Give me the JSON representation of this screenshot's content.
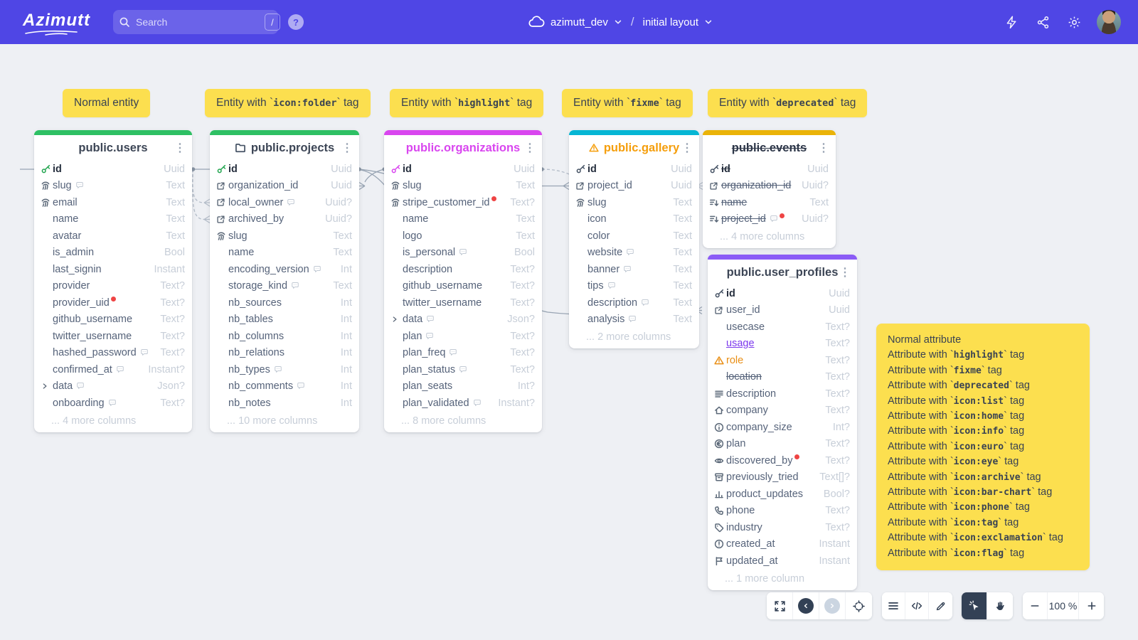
{
  "topbar": {
    "logo": "Azimutt",
    "search": {
      "placeholder": "Search",
      "shortcut": "/"
    },
    "help": "?",
    "project": "azimutt_dev",
    "breadcrumb_separator": "/",
    "layout": "initial layout"
  },
  "labels": [
    {
      "before": "Normal entity",
      "code": "",
      "after": ""
    },
    {
      "before": "Entity with `",
      "code": "icon:folder",
      "after": "` tag"
    },
    {
      "before": "Entity with `",
      "code": "highlight",
      "after": "` tag"
    },
    {
      "before": "Entity with `",
      "code": "fixme",
      "after": "` tag"
    },
    {
      "before": "Entity with `",
      "code": "deprecated",
      "after": "` tag"
    }
  ],
  "tables": [
    {
      "name": "public.users",
      "bar_color": "#2ec064",
      "title_color": "#3d4656",
      "key_color": "#22a54f",
      "title_icon": "none",
      "title_deprecated": false,
      "footer": "... 4 more columns",
      "columns": [
        {
          "name": "id",
          "type": "Uuid",
          "icon": "pk",
          "pk": true
        },
        {
          "name": "slug",
          "type": "Text",
          "icon": "unique",
          "comment": true
        },
        {
          "name": "email",
          "type": "Text",
          "icon": "unique"
        },
        {
          "name": "name",
          "type": "Text"
        },
        {
          "name": "avatar",
          "type": "Text"
        },
        {
          "name": "is_admin",
          "type": "Bool"
        },
        {
          "name": "last_signin",
          "type": "Instant"
        },
        {
          "name": "provider",
          "type": "Text?"
        },
        {
          "name": "provider_uid",
          "type": "Text?",
          "red_dot": true
        },
        {
          "name": "github_username",
          "type": "Text?"
        },
        {
          "name": "twitter_username",
          "type": "Text?"
        },
        {
          "name": "hashed_password",
          "type": "Text?",
          "comment": true
        },
        {
          "name": "confirmed_at",
          "type": "Instant?",
          "comment": true
        },
        {
          "name": "data",
          "type": "Json?",
          "icon": "chevron",
          "comment": true
        },
        {
          "name": "onboarding",
          "type": "Text?",
          "comment": true
        }
      ]
    },
    {
      "name": "public.projects",
      "bar_color": "#2ec064",
      "title_color": "#3d4656",
      "key_color": "#22a54f",
      "title_icon": "folder",
      "title_deprecated": false,
      "footer": "... 10 more columns",
      "columns": [
        {
          "name": "id",
          "type": "Uuid",
          "icon": "pk",
          "pk": true
        },
        {
          "name": "organization_id",
          "type": "Uuid",
          "icon": "fk"
        },
        {
          "name": "local_owner",
          "type": "Uuid?",
          "icon": "fk",
          "comment": true
        },
        {
          "name": "archived_by",
          "type": "Uuid?",
          "icon": "fk"
        },
        {
          "name": "slug",
          "type": "Text",
          "icon": "unique"
        },
        {
          "name": "name",
          "type": "Text"
        },
        {
          "name": "encoding_version",
          "type": "Int",
          "comment": true
        },
        {
          "name": "storage_kind",
          "type": "Text",
          "comment": true
        },
        {
          "name": "nb_sources",
          "type": "Int"
        },
        {
          "name": "nb_tables",
          "type": "Int"
        },
        {
          "name": "nb_columns",
          "type": "Int"
        },
        {
          "name": "nb_relations",
          "type": "Int"
        },
        {
          "name": "nb_types",
          "type": "Int",
          "comment": true
        },
        {
          "name": "nb_comments",
          "type": "Int",
          "comment": true
        },
        {
          "name": "nb_notes",
          "type": "Int"
        }
      ]
    },
    {
      "name": "public.organizations",
      "bar_color": "#d946ef",
      "title_color": "#d946ef",
      "key_color": "#d946ef",
      "title_icon": "none",
      "title_deprecated": false,
      "footer": "... 8 more columns",
      "columns": [
        {
          "name": "id",
          "type": "Uuid",
          "icon": "pk",
          "pk": true
        },
        {
          "name": "slug",
          "type": "Text",
          "icon": "unique"
        },
        {
          "name": "stripe_customer_id",
          "type": "Text?",
          "icon": "unique",
          "red_dot": true
        },
        {
          "name": "name",
          "type": "Text"
        },
        {
          "name": "logo",
          "type": "Text"
        },
        {
          "name": "is_personal",
          "type": "Bool",
          "comment": true
        },
        {
          "name": "description",
          "type": "Text?"
        },
        {
          "name": "github_username",
          "type": "Text?"
        },
        {
          "name": "twitter_username",
          "type": "Text?"
        },
        {
          "name": "data",
          "type": "Json?",
          "icon": "chevron",
          "comment": true
        },
        {
          "name": "plan",
          "type": "Text?",
          "comment": true
        },
        {
          "name": "plan_freq",
          "type": "Text?",
          "comment": true
        },
        {
          "name": "plan_status",
          "type": "Text?",
          "comment": true
        },
        {
          "name": "plan_seats",
          "type": "Int?"
        },
        {
          "name": "plan_validated",
          "type": "Instant?",
          "comment": true
        }
      ]
    },
    {
      "name": "public.gallery",
      "bar_color": "#06b6d4",
      "title_color": "#f59e0b",
      "key_color": "#455264",
      "title_icon": "warning",
      "title_deprecated": false,
      "footer": "... 2 more columns",
      "columns": [
        {
          "name": "id",
          "type": "Uuid",
          "icon": "pk",
          "pk": true
        },
        {
          "name": "project_id",
          "type": "Uuid",
          "icon": "fk"
        },
        {
          "name": "slug",
          "type": "Text",
          "icon": "unique"
        },
        {
          "name": "icon",
          "type": "Text"
        },
        {
          "name": "color",
          "type": "Text"
        },
        {
          "name": "website",
          "type": "Text",
          "comment": true
        },
        {
          "name": "banner",
          "type": "Text",
          "comment": true
        },
        {
          "name": "tips",
          "type": "Text",
          "comment": true
        },
        {
          "name": "description",
          "type": "Text",
          "comment": true
        },
        {
          "name": "analysis",
          "type": "Text",
          "comment": true
        }
      ]
    },
    {
      "name": "public.events",
      "bar_color": "#eab308",
      "title_color": "#2d3648",
      "key_color": "#455264",
      "title_icon": "none",
      "title_deprecated": true,
      "footer": "... 4 more columns",
      "columns": [
        {
          "name": "id",
          "type": "Uuid",
          "icon": "pk",
          "pk": true,
          "style": "deprecated"
        },
        {
          "name": "organization_id",
          "type": "Uuid?",
          "icon": "fk",
          "style": "deprecated"
        },
        {
          "name": "name",
          "type": "Text",
          "icon": "index",
          "style": "deprecated"
        },
        {
          "name": "project_id",
          "type": "Uuid?",
          "icon": "index",
          "style": "deprecated",
          "red_dot": true,
          "comment": true
        }
      ]
    },
    {
      "name": "public.user_profiles",
      "bar_color": "#8b5cf6",
      "title_color": "#3d4656",
      "key_color": "#455264",
      "title_icon": "none",
      "title_deprecated": false,
      "footer": "... 1 more column",
      "columns": [
        {
          "name": "id",
          "type": "Uuid",
          "icon": "pk",
          "pk": true
        },
        {
          "name": "user_id",
          "type": "Uuid",
          "icon": "fk"
        },
        {
          "name": "usecase",
          "type": "Text?"
        },
        {
          "name": "usage",
          "type": "Text?",
          "style": "highlight"
        },
        {
          "name": "role",
          "type": "Text?",
          "icon": "warning",
          "style": "fixme"
        },
        {
          "name": "location",
          "type": "Text?",
          "style": "deprecated"
        },
        {
          "name": "description",
          "type": "Text?",
          "icon": "list"
        },
        {
          "name": "company",
          "type": "Text?",
          "icon": "home"
        },
        {
          "name": "company_size",
          "type": "Int?",
          "icon": "info"
        },
        {
          "name": "plan",
          "type": "Text?",
          "icon": "euro"
        },
        {
          "name": "discovered_by",
          "type": "Text?",
          "icon": "eye",
          "red_dot": true
        },
        {
          "name": "previously_tried",
          "type": "Text[]?",
          "icon": "archive"
        },
        {
          "name": "product_updates",
          "type": "Bool?",
          "icon": "bar-chart"
        },
        {
          "name": "phone",
          "type": "Text?",
          "icon": "phone"
        },
        {
          "name": "industry",
          "type": "Text?",
          "icon": "tag"
        },
        {
          "name": "created_at",
          "type": "Instant",
          "icon": "exclamation"
        },
        {
          "name": "updated_at",
          "type": "Instant",
          "icon": "flag"
        }
      ]
    }
  ],
  "legend": {
    "lines": [
      {
        "before": "Normal attribute",
        "code": "",
        "after": ""
      },
      {
        "before": "Attribute with `",
        "code": "highlight",
        "after": "` tag"
      },
      {
        "before": "Attribute with `",
        "code": "fixme",
        "after": "` tag"
      },
      {
        "before": "Attribute with `",
        "code": "deprecated",
        "after": "` tag"
      },
      {
        "before": "Attribute with `",
        "code": "icon:list",
        "after": "` tag"
      },
      {
        "before": "Attribute with `",
        "code": "icon:home",
        "after": "` tag"
      },
      {
        "before": "Attribute with `",
        "code": "icon:info",
        "after": "` tag"
      },
      {
        "before": "Attribute with `",
        "code": "icon:euro",
        "after": "` tag"
      },
      {
        "before": "Attribute with `",
        "code": "icon:eye",
        "after": "` tag"
      },
      {
        "before": "Attribute with `",
        "code": "icon:archive",
        "after": "` tag"
      },
      {
        "before": "Attribute with `",
        "code": "icon:bar-chart",
        "after": "` tag"
      },
      {
        "before": "Attribute with `",
        "code": "icon:phone",
        "after": "` tag"
      },
      {
        "before": "Attribute with `",
        "code": "icon:tag",
        "after": "` tag"
      },
      {
        "before": "Attribute with `",
        "code": "icon:exclamation",
        "after": "` tag"
      },
      {
        "before": "Attribute with `",
        "code": "icon:flag",
        "after": "` tag"
      }
    ]
  },
  "toolbar": {
    "zoom": "100 %"
  }
}
